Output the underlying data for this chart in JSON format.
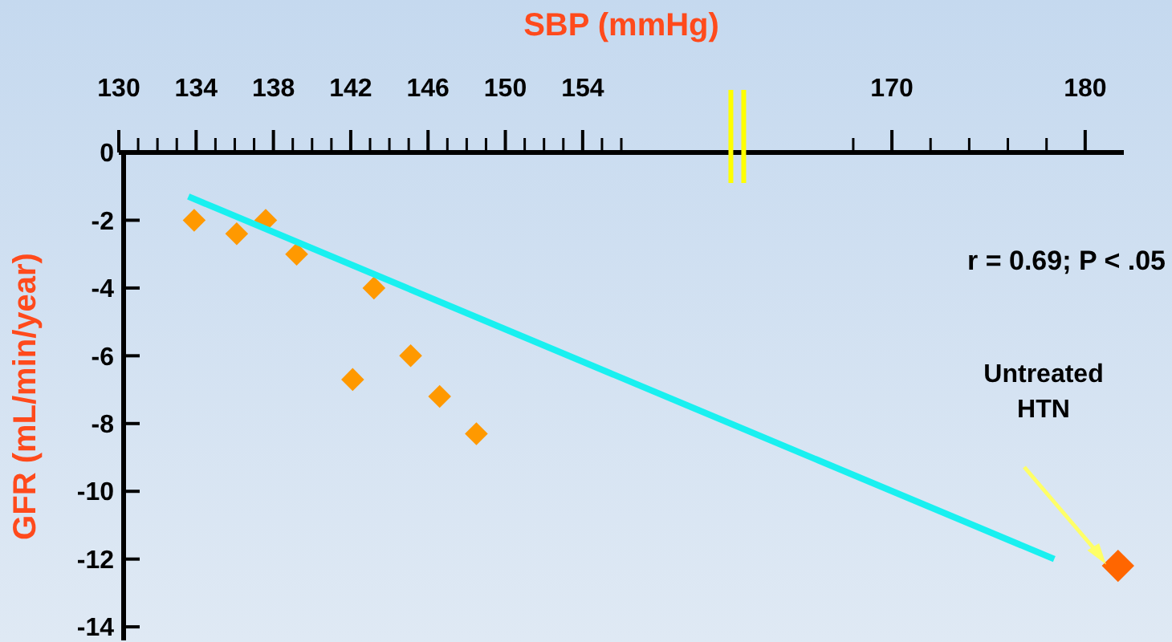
{
  "chart_data": {
    "type": "scatter",
    "xlabel": "SBP (mmHg)",
    "ylabel": "GFR (mL/min/year)",
    "xlim": [
      130,
      182
    ],
    "ylim": [
      -14.4,
      0
    ],
    "xticks": [
      130,
      {
        "value": 131,
        "label": null
      },
      {
        "value": 132,
        "label": null
      },
      {
        "value": 133,
        "label": null
      },
      134,
      {
        "value": 135,
        "label": null
      },
      {
        "value": 136,
        "label": null
      },
      {
        "value": 137,
        "label": null
      },
      138,
      {
        "value": 139,
        "label": null
      },
      {
        "value": 140,
        "label": null
      },
      {
        "value": 141,
        "label": null
      },
      142,
      {
        "value": 143,
        "label": null
      },
      {
        "value": 144,
        "label": null
      },
      {
        "value": 145,
        "label": null
      },
      146,
      {
        "value": 147,
        "label": null
      },
      {
        "value": 148,
        "label": null
      },
      {
        "value": 149,
        "label": null
      },
      150,
      {
        "value": 151,
        "label": null
      },
      {
        "value": 152,
        "label": null
      },
      {
        "value": 153,
        "label": null
      },
      154,
      {
        "value": 155,
        "label": null
      },
      {
        "value": 156,
        "label": null
      },
      {
        "value": 168,
        "label": null
      },
      170,
      {
        "value": 172,
        "label": null
      },
      {
        "value": 174,
        "label": null
      },
      {
        "value": 176,
        "label": null
      },
      {
        "value": 178,
        "label": null
      },
      180
    ],
    "yticks": [
      0,
      -2,
      -4,
      -6,
      -8,
      -10,
      -12,
      -14
    ],
    "marker": "diamond",
    "series": [
      {
        "color": "#ff9900",
        "x": [
          133.9,
          136.1,
          137.6,
          139.2,
          142.1,
          143.2,
          145.1,
          146.6,
          148.5
        ],
        "values": [
          -2.0,
          -2.4,
          -2.0,
          -3.0,
          -6.7,
          -4.0,
          -6.0,
          -7.2,
          -8.3
        ]
      },
      {
        "color": "#ff6600",
        "x": [
          181.7
        ],
        "values": [
          -12.2
        ]
      },
      {
        "type": "line",
        "color": "#19f0f0",
        "x": [
          133.6,
          178.4
        ],
        "values": [
          -1.3,
          -12.0
        ],
        "marker": "none"
      }
    ],
    "annotations": [
      "r = 0.69; P < .05",
      "Untreated HTN"
    ]
  }
}
